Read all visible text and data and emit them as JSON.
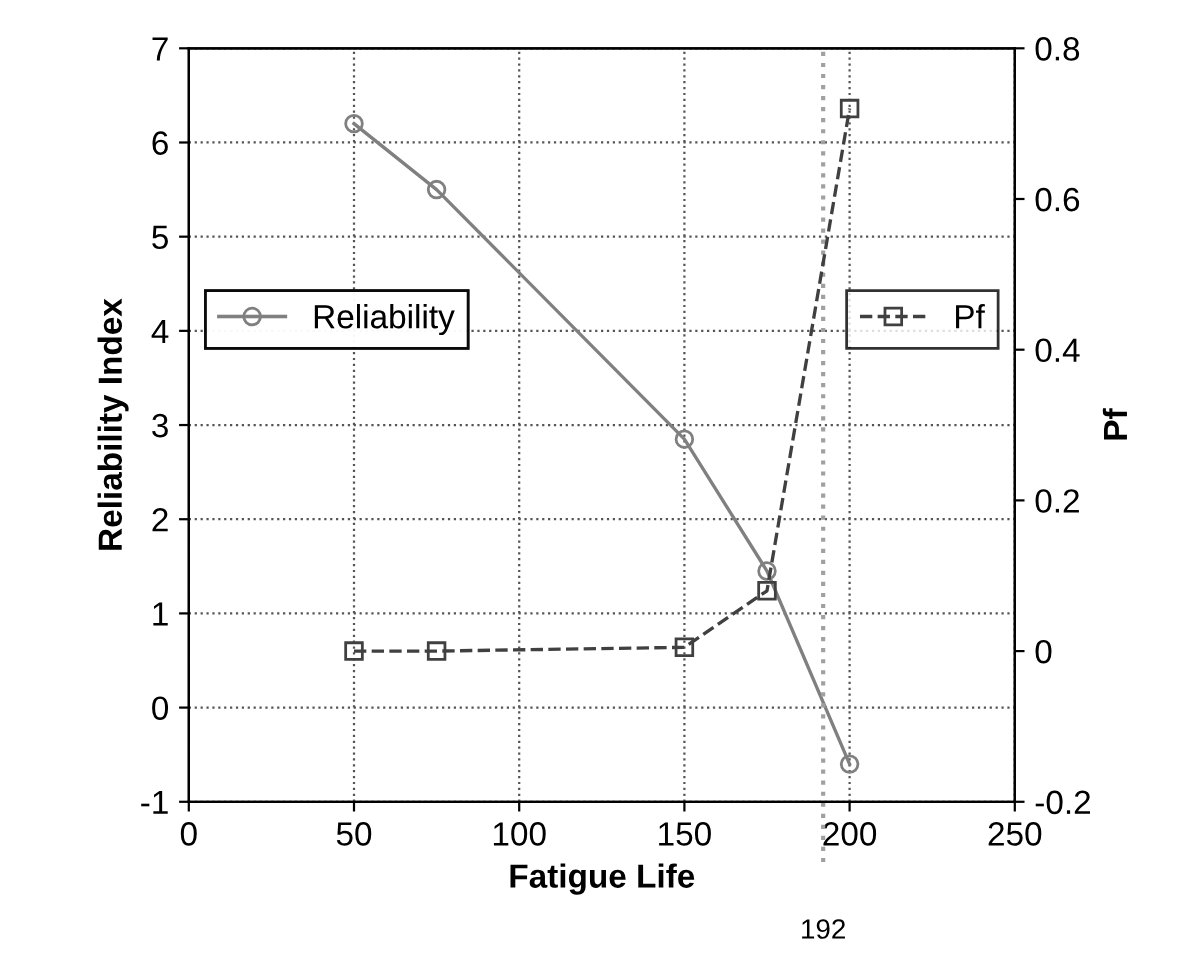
{
  "chart_data": {
    "type": "line",
    "xlabel": "Fatigue Life",
    "ylabel": "Reliability Index",
    "y2label": "Pf",
    "x": [
      50,
      75,
      150,
      175,
      200
    ],
    "series": [
      {
        "name": "Reliability",
        "color": "#808080",
        "values": [
          6.2,
          5.5,
          2.85,
          1.45,
          -0.6
        ],
        "marker": "circle",
        "line_style": "solid"
      },
      {
        "name": "Pf",
        "color": "#404040",
        "values": [
          0.0,
          0.0,
          0.005,
          0.08,
          0.72
        ],
        "axis": "y2",
        "marker": "square",
        "line_style": "dashed"
      }
    ],
    "xlim": [
      0,
      250
    ],
    "xticks": [
      0,
      50,
      100,
      150,
      200,
      250
    ],
    "ylim": [
      -1,
      7
    ],
    "yticks": [
      -1,
      0,
      1,
      2,
      3,
      4,
      5,
      6,
      7
    ],
    "y2lim": [
      -0.2,
      0.8
    ],
    "y2ticks": [
      -0.2,
      0,
      0.2,
      0.4,
      0.6,
      0.8
    ],
    "ref_lines": [
      {
        "axis": "x",
        "value": 192,
        "label": "192",
        "color": "#a0a0a0",
        "line_style": "dotted"
      }
    ],
    "grid": true,
    "legend": "left"
  }
}
